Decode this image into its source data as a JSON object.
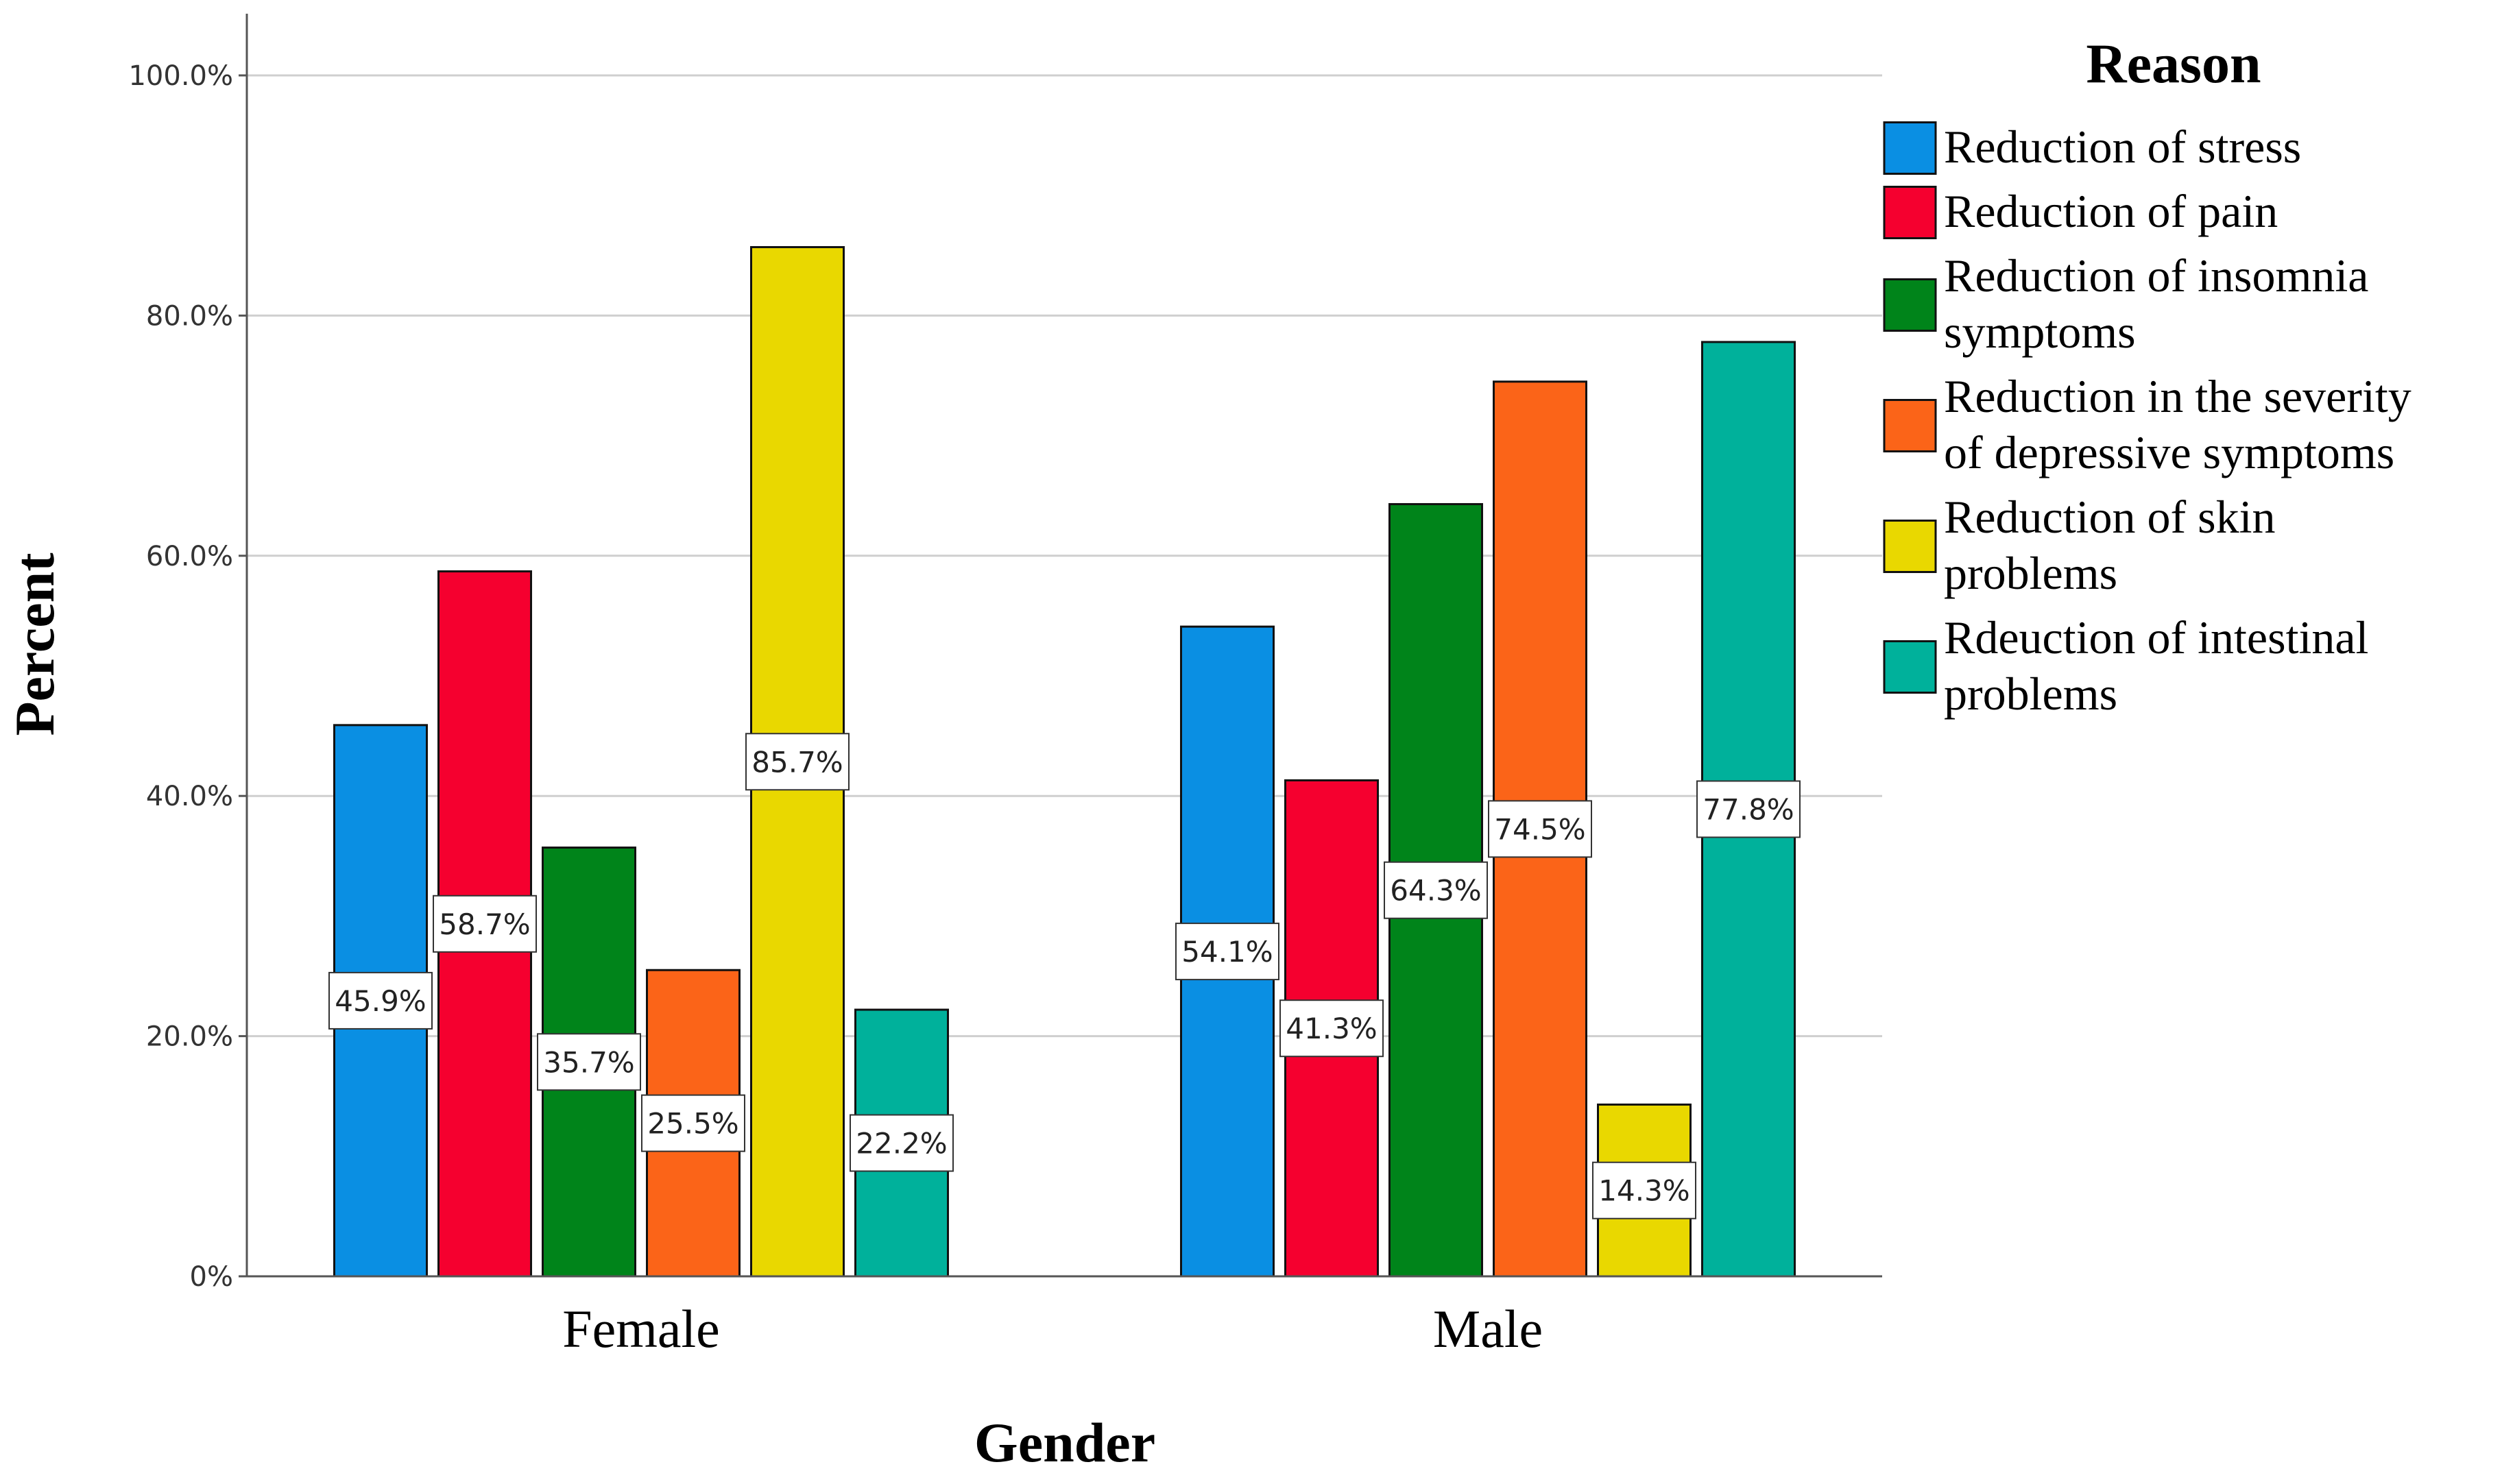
{
  "chart_data": {
    "type": "bar",
    "xlabel": "Gender",
    "ylabel": "Percent",
    "legend_title": "Reason",
    "legend_position": "right",
    "grid": true,
    "ylim": [
      0,
      100
    ],
    "yticks": [
      0,
      20,
      40,
      60,
      80,
      100
    ],
    "ytick_labels": [
      "0%",
      "20.0%",
      "40.0%",
      "60.0%",
      "80.0%",
      "100.0%"
    ],
    "categories": [
      "Female",
      "Male"
    ],
    "series": [
      {
        "name": "Reduction of stress",
        "legend_lines": [
          "Reduction of stress"
        ],
        "color": "#0a8fe3",
        "values": [
          45.9,
          54.1
        ],
        "labels": [
          "45.9%",
          "54.1%"
        ]
      },
      {
        "name": "Reduction of pain",
        "legend_lines": [
          "Reduction of pain"
        ],
        "color": "#f5002f",
        "values": [
          58.7,
          41.3
        ],
        "labels": [
          "58.7%",
          "41.3%"
        ]
      },
      {
        "name": "Reduction of insomnia symptoms",
        "legend_lines": [
          "Reduction of insomnia",
          "symptoms"
        ],
        "color": "#00841a",
        "values": [
          35.7,
          64.3
        ],
        "labels": [
          "35.7%",
          "64.3%"
        ]
      },
      {
        "name": "Reduction in the severity of depressive symptoms",
        "legend_lines": [
          "Reduction in the severity",
          "of depressive symptoms"
        ],
        "color": "#fb6418",
        "values": [
          25.5,
          74.5
        ],
        "labels": [
          "25.5%",
          "74.5%"
        ]
      },
      {
        "name": "Reduction of skin problems",
        "legend_lines": [
          "Reduction of skin",
          "problems"
        ],
        "color": "#e9d800",
        "values": [
          85.7,
          14.3
        ],
        "labels": [
          "85.7%",
          "14.3%"
        ]
      },
      {
        "name": "Rdeuction of intestinal problems",
        "legend_lines": [
          "Rdeuction of intestinal",
          "problems"
        ],
        "color": "#00b19b",
        "values": [
          22.2,
          77.8
        ],
        "labels": [
          "22.2%",
          "77.8%"
        ]
      }
    ]
  }
}
